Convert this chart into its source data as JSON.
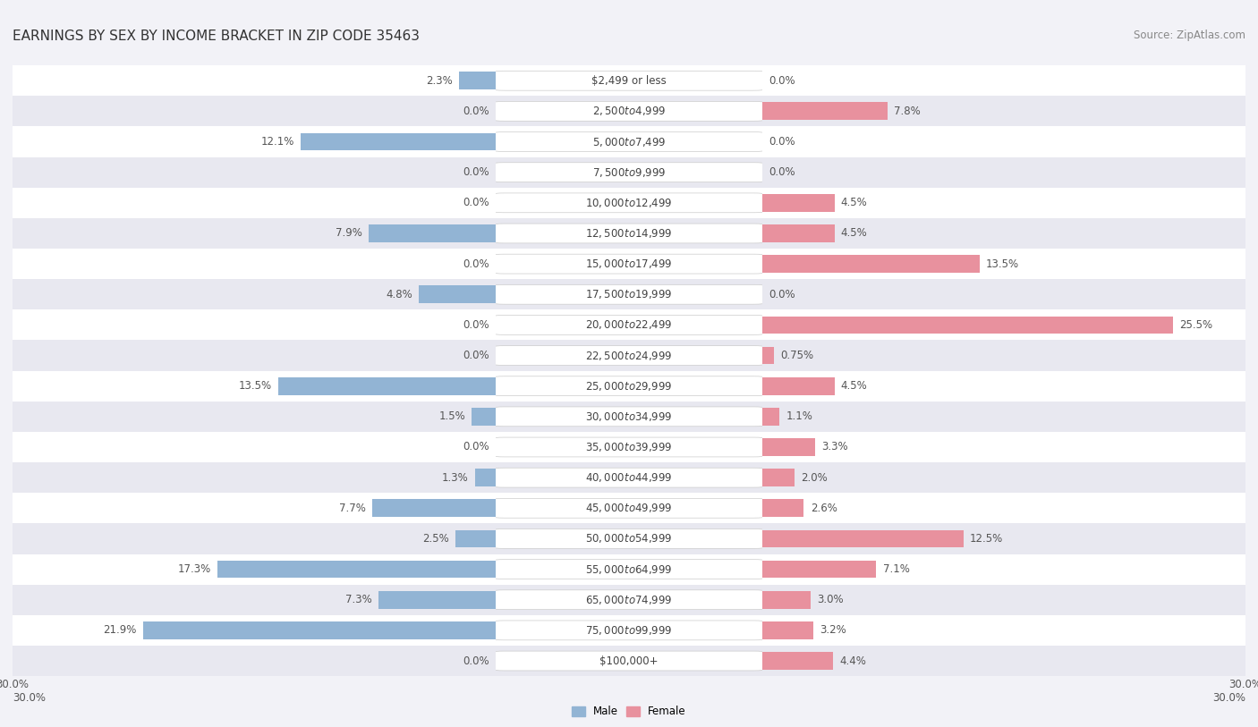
{
  "title": "EARNINGS BY SEX BY INCOME BRACKET IN ZIP CODE 35463",
  "source": "Source: ZipAtlas.com",
  "categories": [
    "$2,499 or less",
    "$2,500 to $4,999",
    "$5,000 to $7,499",
    "$7,500 to $9,999",
    "$10,000 to $12,499",
    "$12,500 to $14,999",
    "$15,000 to $17,499",
    "$17,500 to $19,999",
    "$20,000 to $22,499",
    "$22,500 to $24,999",
    "$25,000 to $29,999",
    "$30,000 to $34,999",
    "$35,000 to $39,999",
    "$40,000 to $44,999",
    "$45,000 to $49,999",
    "$50,000 to $54,999",
    "$55,000 to $64,999",
    "$65,000 to $74,999",
    "$75,000 to $99,999",
    "$100,000+"
  ],
  "male": [
    2.3,
    0.0,
    12.1,
    0.0,
    0.0,
    7.9,
    0.0,
    4.8,
    0.0,
    0.0,
    13.5,
    1.5,
    0.0,
    1.3,
    7.7,
    2.5,
    17.3,
    7.3,
    21.9,
    0.0
  ],
  "female": [
    0.0,
    7.8,
    0.0,
    0.0,
    4.5,
    4.5,
    13.5,
    0.0,
    25.5,
    0.75,
    4.5,
    1.1,
    3.3,
    2.0,
    2.6,
    12.5,
    7.1,
    3.0,
    3.2,
    4.4
  ],
  "male_color": "#92b4d4",
  "female_color": "#e8919e",
  "xlim": 30.0,
  "bg_color": "#f2f2f7",
  "row_color_odd": "#ffffff",
  "row_color_even": "#e8e8f0",
  "title_fontsize": 11,
  "source_fontsize": 8.5,
  "label_fontsize": 8.5,
  "category_fontsize": 8.5,
  "bar_height": 0.58,
  "legend_male": "Male",
  "legend_female": "Female"
}
